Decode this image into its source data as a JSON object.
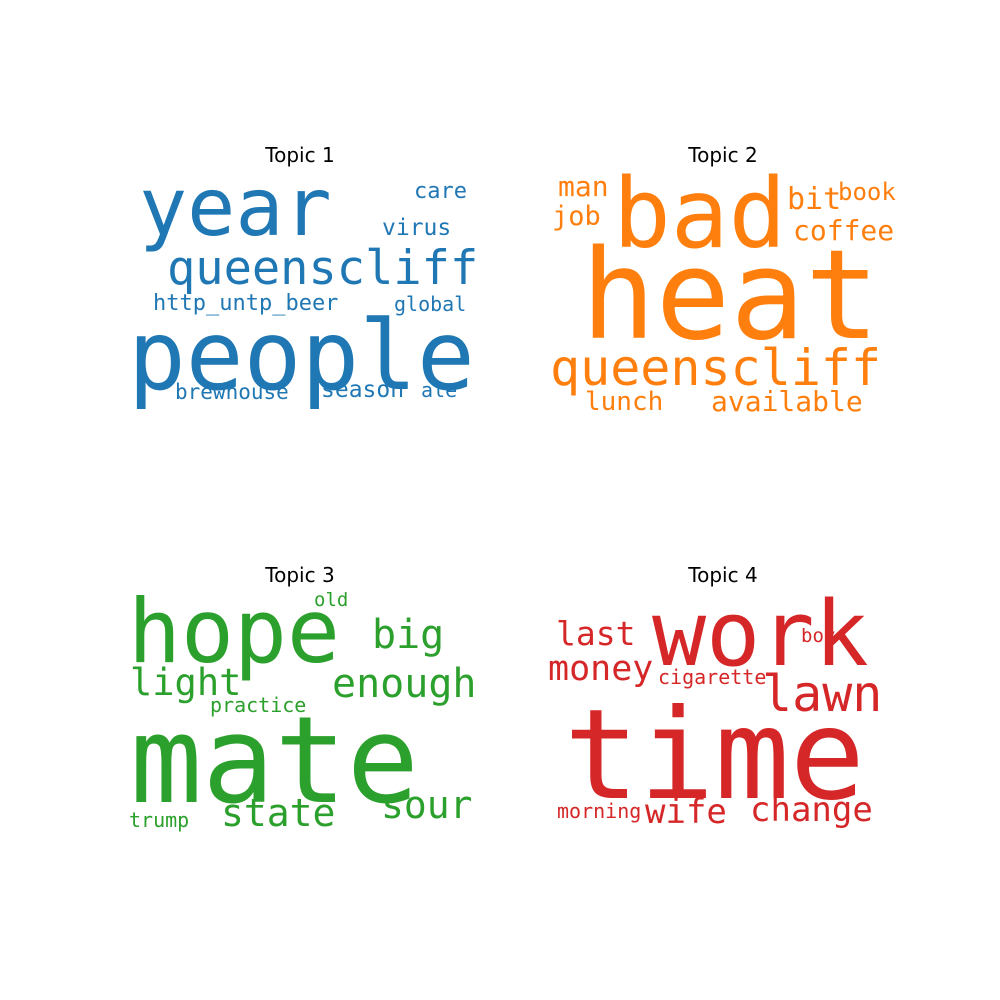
{
  "topics": [
    {
      "title": "Topic 1",
      "color": "#1f77b4",
      "words": [
        "year",
        "queenscliff",
        "people",
        "care",
        "virus",
        "http_untp_beer",
        "global",
        "brewhouse",
        "season",
        "ale"
      ]
    },
    {
      "title": "Topic 2",
      "color": "#ff7f0e",
      "words": [
        "man",
        "bad",
        "bit",
        "book",
        "job",
        "coffee",
        "heat",
        "queenscliff",
        "lunch",
        "available"
      ]
    },
    {
      "title": "Topic 3",
      "color": "#2ca02c",
      "words": [
        "hope",
        "old",
        "big",
        "light",
        "enough",
        "practice",
        "mate",
        "trump",
        "state",
        "sour"
      ]
    },
    {
      "title": "Topic 4",
      "color": "#d62728",
      "words": [
        "last",
        "work",
        "boy",
        "money",
        "cigarette",
        "lawn",
        "time",
        "morning",
        "wife",
        "change"
      ]
    }
  ]
}
